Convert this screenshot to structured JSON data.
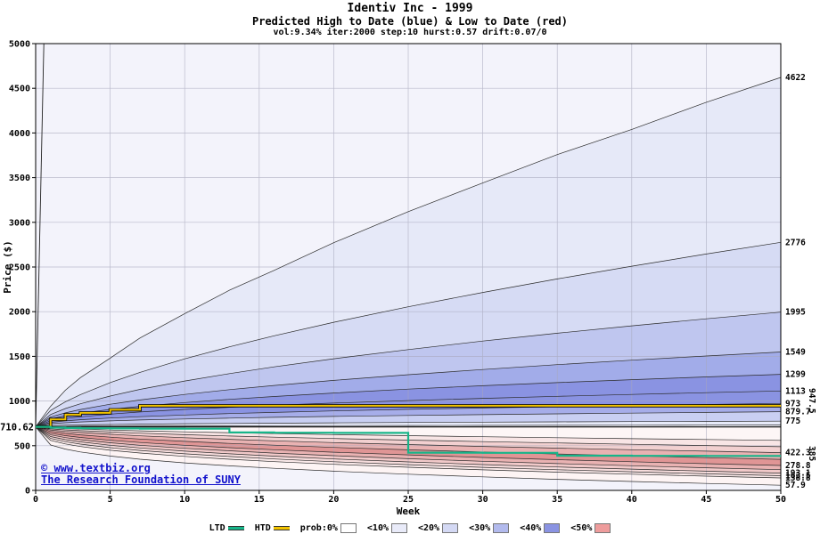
{
  "header": {
    "title": "Identiv Inc - 1999",
    "subtitle": "Predicted High to Date (blue) &  Low to Date (red)",
    "params": "vol:9.34% iter:2000 step:10 hurst:0.57 drift:0.07/0"
  },
  "watermark": {
    "line1": "© www.textbiz.org",
    "line2": "The Research Foundation of SUNY",
    "color": "#1212cc"
  },
  "legend": {
    "items": [
      {
        "label": "LTD",
        "swatch": "line",
        "color": "#17b589"
      },
      {
        "label": "HTD",
        "swatch": "line",
        "color": "#f2c300"
      },
      {
        "label": "prob:0%",
        "swatch": "box",
        "color": "#ffffff"
      },
      {
        "label": "<10%",
        "swatch": "box",
        "color": "#e9ebf9"
      },
      {
        "label": "<20%",
        "swatch": "box",
        "color": "#d4d9f4"
      },
      {
        "label": "<30%",
        "swatch": "box",
        "color": "#b2baed"
      },
      {
        "label": "<40%",
        "swatch": "box",
        "color": "#8a93e2"
      },
      {
        "label": "<50%",
        "swatch": "box",
        "color": "#ee9c9c"
      }
    ]
  },
  "chart_data": {
    "type": "area",
    "title": "Identiv Inc - 1999",
    "x_label": "Week",
    "y_label": "Price ($)",
    "x_range": [
      0,
      50
    ],
    "y_range": [
      0,
      5000
    ],
    "x_ticks": [
      0,
      5,
      10,
      15,
      20,
      25,
      30,
      35,
      40,
      45,
      50
    ],
    "y_ticks": [
      0,
      500,
      1000,
      1500,
      2000,
      2500,
      3000,
      3500,
      4000,
      4500,
      5000
    ],
    "start_price": 710.62,
    "start_price_label": "710.62",
    "weeks": [
      0,
      1,
      2,
      3,
      5,
      7,
      10,
      13,
      16,
      20,
      25,
      30,
      35,
      40,
      45,
      50
    ],
    "spike": {
      "weeks": [
        0,
        0.55
      ],
      "values": [
        710.62,
        5000
      ]
    },
    "high_quantiles": [
      {
        "final_label": "4622",
        "band_color": "#e6e9f8",
        "values": [
          711,
          940,
          1122,
          1262,
          1480,
          1705,
          1978,
          2240,
          2462,
          2772,
          3120,
          3440,
          3758,
          4040,
          4344,
          4622
        ]
      },
      {
        "final_label": "2776",
        "band_color": "#d6dbf4",
        "values": [
          711,
          894,
          992,
          1072,
          1206,
          1321,
          1472,
          1607,
          1730,
          1881,
          2055,
          2215,
          2367,
          2509,
          2645,
          2776
        ]
      },
      {
        "final_label": "1995",
        "band_color": "#bfc6ef",
        "values": [
          711,
          849,
          916,
          969,
          1056,
          1130,
          1224,
          1307,
          1382,
          1473,
          1576,
          1671,
          1759,
          1842,
          1920,
          1995
        ]
      },
      {
        "final_label": "1549",
        "band_color": "#a2ace9",
        "values": [
          711,
          821,
          868,
          905,
          964,
          1012,
          1074,
          1127,
          1174,
          1231,
          1295,
          1353,
          1407,
          1457,
          1504,
          1549
        ]
      },
      {
        "final_label": "1299",
        "band_color": "#8a93e2",
        "values": [
          711,
          801,
          836,
          863,
          906,
          940,
          983,
          1019,
          1051,
          1090,
          1133,
          1171,
          1206,
          1239,
          1270,
          1299
        ]
      },
      {
        "final_label": "1113",
        "band_color": "#8a93e2",
        "values": [
          711,
          780,
          805,
          824,
          854,
          877,
          906,
          930,
          952,
          977,
          1005,
          1030,
          1053,
          1074,
          1094,
          1113
        ]
      },
      {
        "final_label": "973",
        "band_color": "#a6ade9",
        "values": [
          711,
          762,
          778,
          791,
          810,
          825,
          844,
          860,
          873,
          889,
          907,
          922,
          936,
          949,
          961,
          973
        ]
      },
      {
        "final_label": "879.7",
        "band_color": "#c9cff2",
        "values": [
          711,
          746,
          757,
          766,
          778,
          788,
          799,
          809,
          818,
          828,
          839,
          848,
          857,
          865,
          873,
          880
        ]
      },
      {
        "final_label": "775",
        "band_color": "#e7eaf9",
        "values": [
          711,
          725,
          730,
          733,
          737,
          741,
          746,
          749,
          752,
          756,
          760,
          764,
          767,
          770,
          772,
          775
        ]
      },
      {
        "final_label": "",
        "band_color": "#f5f6fd",
        "values": [
          711,
          716,
          717,
          718,
          720,
          721,
          722,
          723,
          724,
          725,
          726,
          727,
          728,
          729,
          730,
          731
        ]
      }
    ],
    "low_quantiles": [
      {
        "final_label": "",
        "band_color": "#fdf6f6",
        "values": [
          711,
          698,
          690,
          685,
          675,
          666,
          655,
          645,
          636,
          625,
          613,
          601,
          590,
          579,
          570,
          560
        ]
      },
      {
        "final_label": "",
        "band_color": "#f8e5e5",
        "values": [
          711,
          688,
          677,
          668,
          653,
          640,
          624,
          609,
          596,
          581,
          563,
          546,
          531,
          516,
          502,
          489
        ]
      },
      {
        "final_label": "422.3",
        "band_color": "#f2d0d0",
        "values": [
          711,
          676,
          660,
          648,
          628,
          611,
          590,
          572,
          555,
          535,
          513,
          492,
          473,
          455,
          439,
          422
        ]
      },
      {
        "final_label": "",
        "band_color": "#e9b2b2",
        "values": [
          711,
          660,
          638,
          622,
          596,
          575,
          549,
          526,
          506,
          481,
          454,
          430,
          407,
          386,
          367,
          348
        ]
      },
      {
        "final_label": "278.8",
        "band_color": "#e09595",
        "values": [
          711,
          640,
          613,
          593,
          561,
          536,
          505,
          478,
          455,
          427,
          397,
          369,
          344,
          321,
          299,
          279
        ]
      },
      {
        "final_label": "",
        "band_color": "#e9b2b2",
        "values": [
          711,
          622,
          591,
          568,
          533,
          505,
          471,
          443,
          417,
          388,
          355,
          326,
          300,
          276,
          253,
          232
        ]
      },
      {
        "final_label": "193.1",
        "band_color": "#f1c9c9",
        "values": [
          711,
          603,
          568,
          543,
          505,
          475,
          439,
          409,
          383,
          352,
          319,
          289,
          262,
          238,
          215,
          193
        ]
      },
      {
        "final_label": "163.5",
        "band_color": "#f6dcdc",
        "values": [
          711,
          582,
          545,
          518,
          478,
          447,
          409,
          379,
          352,
          321,
          288,
          258,
          231,
          208,
          185,
          164
        ]
      },
      {
        "final_label": "138.8",
        "band_color": "#fae9e9",
        "values": [
          711,
          560,
          520,
          491,
          449,
          418,
          380,
          349,
          322,
          292,
          259,
          230,
          204,
          181,
          159,
          139
        ]
      },
      {
        "final_label": "57.9",
        "band_color": "#fdf4f4",
        "values": [
          711,
          509,
          462,
          430,
          384,
          349,
          308,
          275,
          247,
          215,
          181,
          151,
          124,
          100,
          78,
          58
        ]
      }
    ],
    "htd_line": {
      "label": "HTD",
      "color": "#f2c300",
      "final_label": "947.5",
      "final_label_color": "#8f7d00",
      "final_value": 947.5,
      "values": [
        711,
        795,
        848,
        868,
        902,
        947,
        947,
        947,
        947,
        947,
        947,
        947,
        947,
        947,
        947,
        947.5
      ]
    },
    "ltd_line": {
      "label": "LTD",
      "color": "#17b589",
      "final_label": "385",
      "final_label_color": "#00a383",
      "final_value": 385,
      "values": [
        711,
        702,
        698,
        695,
        693,
        691,
        690,
        648,
        645,
        643,
        422,
        420,
        388,
        386,
        385,
        385
      ]
    },
    "plot_background": "#f3f3fb",
    "grid_color": "#a8a8bc"
  }
}
